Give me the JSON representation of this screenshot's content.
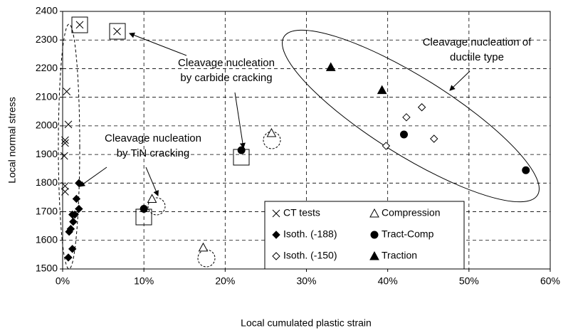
{
  "chart_data": {
    "type": "scatter",
    "xlabel": "Local cumulated plastic strain",
    "ylabel": "Local normal stress",
    "xlim": [
      0,
      60
    ],
    "xticks": [
      {
        "value": 0,
        "label": "0%"
      },
      {
        "value": 10,
        "label": "10%"
      },
      {
        "value": 20,
        "label": "20%"
      },
      {
        "value": 30,
        "label": "30%"
      },
      {
        "value": 40,
        "label": "40%"
      },
      {
        "value": 50,
        "label": "50%"
      },
      {
        "value": 60,
        "label": "60%"
      }
    ],
    "ylim": [
      1500,
      2400
    ],
    "yticks": [
      1500,
      1600,
      1700,
      1800,
      1900,
      2000,
      2100,
      2200,
      2300,
      2400
    ],
    "grid": true,
    "series": [
      {
        "name": "CT tests",
        "marker": "x",
        "color": "#000000",
        "x": [
          0.5,
          0.7,
          0.3,
          0.3,
          0.2,
          0.3,
          0.3,
          2.1,
          6.7
        ],
        "values": [
          2120,
          2005,
          1950,
          1940,
          1895,
          1790,
          1770,
          2353,
          2330
        ]
      },
      {
        "name": "Compression",
        "marker": "triangle-open",
        "color": "#000000",
        "x": [
          11,
          17.3,
          25.7
        ],
        "values": [
          1745,
          1575,
          1975
        ]
      },
      {
        "name": "Isoth. (-188)",
        "marker": "diamond",
        "color": "#000000",
        "x": [
          2,
          1.7,
          2,
          1.5,
          1.2,
          1.3,
          1,
          0.8,
          1.2,
          0.7
        ],
        "values": [
          1800,
          1745,
          1710,
          1690,
          1690,
          1665,
          1640,
          1630,
          1570,
          1540
        ]
      },
      {
        "name": "Tract-Comp",
        "marker": "circle",
        "color": "#000000",
        "x": [
          10,
          22,
          42,
          57
        ],
        "values": [
          1710,
          1915,
          1970,
          1845
        ]
      },
      {
        "name": "Isoth. (-150)",
        "marker": "diamond-open",
        "color": "#000000",
        "x": [
          39.8,
          42.3,
          44.2,
          45.7
        ],
        "values": [
          1930,
          2030,
          2065,
          1955
        ]
      },
      {
        "name": "Traction",
        "marker": "triangle",
        "color": "#000000",
        "x": [
          33,
          39.3
        ],
        "values": [
          2205,
          2125
        ]
      }
    ],
    "annotations": [
      [
        "Cleavage nucleation",
        "by carbide cracking"
      ],
      [
        "Cleavage nucleation",
        "by TiN cracking"
      ],
      [
        "Cleavage nucleation of",
        "ductile type"
      ]
    ]
  }
}
